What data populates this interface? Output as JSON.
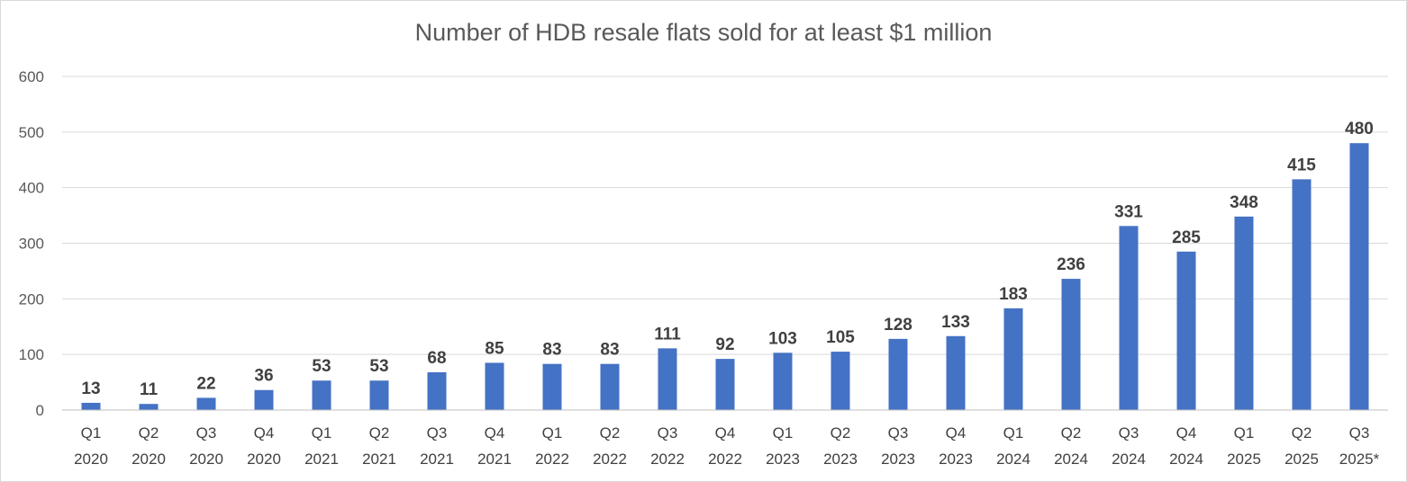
{
  "chart_data": {
    "type": "bar",
    "title": "Number of HDB resale flats sold for at least $1 million",
    "xlabel": "",
    "ylabel": "",
    "ylim": [
      0,
      600
    ],
    "yticks": [
      0,
      100,
      200,
      300,
      400,
      500,
      600
    ],
    "grid": true,
    "bar_color": "#4472c4",
    "categories": [
      [
        "Q1",
        "2020"
      ],
      [
        "Q2",
        "2020"
      ],
      [
        "Q3",
        "2020"
      ],
      [
        "Q4",
        "2020"
      ],
      [
        "Q1",
        "2021"
      ],
      [
        "Q2",
        "2021"
      ],
      [
        "Q3",
        "2021"
      ],
      [
        "Q4",
        "2021"
      ],
      [
        "Q1",
        "2022"
      ],
      [
        "Q2",
        "2022"
      ],
      [
        "Q3",
        "2022"
      ],
      [
        "Q4",
        "2022"
      ],
      [
        "Q1",
        "2023"
      ],
      [
        "Q2",
        "2023"
      ],
      [
        "Q3",
        "2023"
      ],
      [
        "Q4",
        "2023"
      ],
      [
        "Q1",
        "2024"
      ],
      [
        "Q2",
        "2024"
      ],
      [
        "Q3",
        "2024"
      ],
      [
        "Q4",
        "2024"
      ],
      [
        "Q1",
        "2025"
      ],
      [
        "Q2",
        "2025"
      ],
      [
        "Q3",
        "2025*"
      ]
    ],
    "values": [
      13,
      11,
      22,
      36,
      53,
      53,
      68,
      85,
      83,
      83,
      111,
      92,
      103,
      105,
      128,
      133,
      183,
      236,
      331,
      285,
      348,
      415,
      480
    ]
  }
}
